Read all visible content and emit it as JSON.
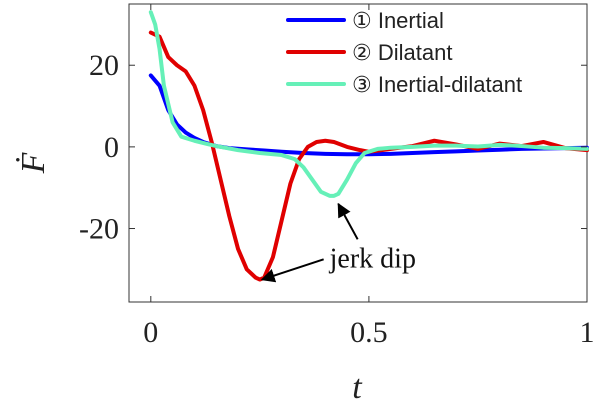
{
  "chart_data": {
    "type": "line",
    "xlabel": "t",
    "ylabel": "Ḟ",
    "xlim": [
      -0.05,
      1.0
    ],
    "ylim": [
      -38,
      35
    ],
    "xticks": [
      0,
      0.5,
      1
    ],
    "xtick_labels": [
      "0",
      "0.5",
      "1"
    ],
    "yticks": [
      -20,
      0,
      20
    ],
    "ytick_labels": [
      "-20",
      "0",
      "20"
    ],
    "grid": false,
    "legend_position": "top-right",
    "series": [
      {
        "name": "① Inertial",
        "color": "#0000ff",
        "x": [
          0,
          0.02,
          0.04,
          0.06,
          0.08,
          0.1,
          0.12,
          0.15,
          0.18,
          0.22,
          0.26,
          0.3,
          0.35,
          0.4,
          0.45,
          0.5,
          0.55,
          0.6,
          0.65,
          0.7,
          0.75,
          0.8,
          0.85,
          0.9,
          0.95,
          1.0
        ],
        "y": [
          17.5,
          15,
          9,
          5.5,
          3.5,
          2.2,
          1.2,
          0.2,
          -0.3,
          -0.6,
          -0.9,
          -1.2,
          -1.5,
          -1.7,
          -1.8,
          -1.8,
          -1.7,
          -1.5,
          -1.3,
          -1.1,
          -0.9,
          -0.7,
          -0.5,
          -0.4,
          -0.3,
          -0.2
        ]
      },
      {
        "name": "② Dilatant",
        "color": "#e00000",
        "x": [
          0,
          0.02,
          0.04,
          0.06,
          0.08,
          0.1,
          0.12,
          0.14,
          0.16,
          0.18,
          0.2,
          0.22,
          0.24,
          0.25,
          0.26,
          0.28,
          0.3,
          0.32,
          0.34,
          0.36,
          0.38,
          0.4,
          0.42,
          0.45,
          0.48,
          0.5,
          0.55,
          0.6,
          0.65,
          0.7,
          0.75,
          0.8,
          0.85,
          0.9,
          0.95,
          1.0
        ],
        "y": [
          28,
          27,
          22,
          20,
          18.5,
          15,
          9,
          1,
          -8,
          -17,
          -25,
          -30,
          -32,
          -32.5,
          -32,
          -27,
          -18,
          -9,
          -3,
          0,
          1.2,
          1.5,
          1.2,
          0,
          -0.8,
          -1.2,
          -0.5,
          0.2,
          1.5,
          0.6,
          -0.5,
          0.8,
          0.2,
          1.2,
          -0.3,
          -0.8
        ]
      },
      {
        "name": "③ Inertial-dilatant",
        "color": "#66f0b8",
        "x": [
          0,
          0.01,
          0.02,
          0.03,
          0.05,
          0.07,
          0.1,
          0.13,
          0.15,
          0.2,
          0.25,
          0.3,
          0.33,
          0.35,
          0.37,
          0.39,
          0.41,
          0.42,
          0.43,
          0.45,
          0.47,
          0.49,
          0.52,
          0.55,
          0.6,
          0.65,
          0.7,
          0.75,
          0.8,
          0.85,
          0.9,
          0.95,
          1.0
        ],
        "y": [
          33,
          30,
          24,
          15,
          6,
          2.5,
          1.5,
          0.7,
          0.2,
          -0.8,
          -1.5,
          -2,
          -3,
          -5,
          -8,
          -11,
          -12,
          -12,
          -11.5,
          -8,
          -4,
          -1.5,
          -0.5,
          -0.2,
          0,
          0.3,
          0.3,
          0.1,
          0.5,
          0.2,
          -0.2,
          -0.3,
          -0.5
        ]
      }
    ],
    "annotations": [
      {
        "text": "jerk dip",
        "text_x": 0.41,
        "text_y": -29.5,
        "arrows": [
          {
            "to_x": 0.255,
            "to_y": -32.5
          },
          {
            "to_x": 0.43,
            "to_y": -14
          }
        ]
      }
    ]
  }
}
